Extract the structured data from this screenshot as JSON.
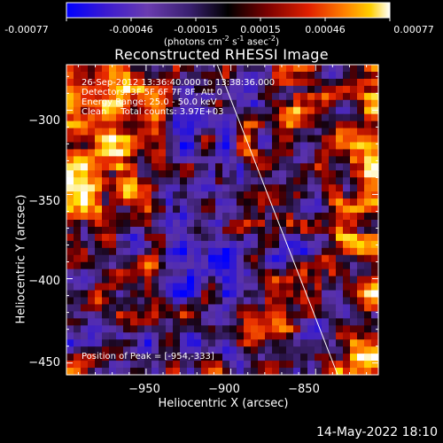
{
  "colorbar": {
    "ticks": [
      "-0.00077",
      "-0.00046",
      "-0.00015",
      "0.00015",
      "0.00046",
      "0.00077"
    ],
    "units_text": "(photons cm",
    "units_full": [
      "(photons cm",
      "-2",
      " s",
      "-1",
      " asec",
      "-2",
      ")"
    ]
  },
  "header": {
    "title": "Reconstructed RHESSI Image",
    "lines": [
      "26-Sep-2012 13:36:40.000 to 13:38:36.000",
      "Detectors: 3F 5F 6F 7F 8F, Att 0",
      "Energy Range: 25.0 - 50.0 keV",
      "Clean     Total counts: 3.97E+03"
    ],
    "peak": "Position of Peak = [-954,-333]"
  },
  "footer": {
    "timestamp": "14-May-2022 18:10"
  },
  "chart_data": {
    "type": "heatmap",
    "title": "Reconstructed RHESSI Image",
    "xlabel": "Heliocentric X (arcsec)",
    "ylabel": "Heliocentric Y (arcsec)",
    "xlim": [
      -997,
      -813
    ],
    "ylim": [
      -457,
      -273
    ],
    "x_ticks": [
      -950,
      -900,
      -850
    ],
    "y_ticks": [
      -300,
      -350,
      -400,
      -450
    ],
    "x_tick_labels": [
      "−950",
      "−900",
      "−850"
    ],
    "y_tick_labels": [
      "−300",
      "−350",
      "−400",
      "−450"
    ],
    "colorbar_range": [
      -0.00077,
      0.00077
    ],
    "colorbar_label": "(photons cm^-2 s^-1 asec^-2)",
    "peak_position": [
      -954,
      -333
    ],
    "limb_line": [
      [
        -908,
        -273
      ],
      [
        -837,
        -457
      ]
    ],
    "grid": false
  }
}
